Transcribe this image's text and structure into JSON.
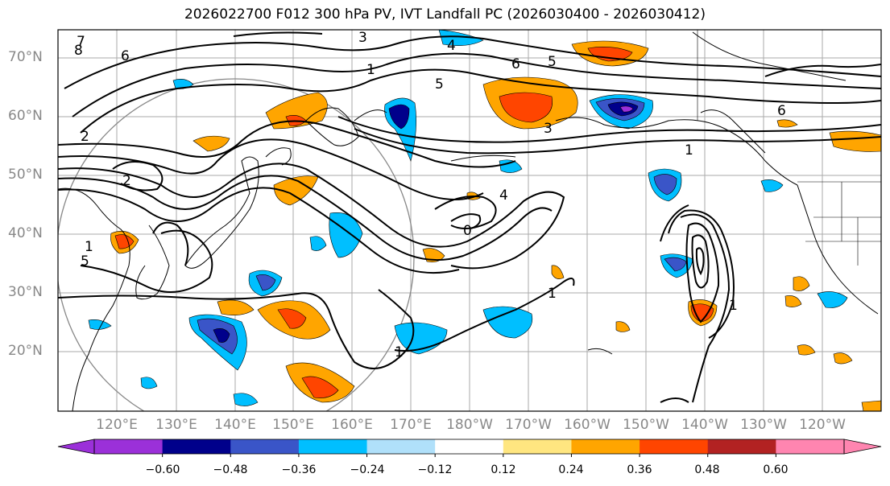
{
  "title": "2026022700 F012 300 hPa PV, IVT Landfall PC (2026030400 - 2026030412)",
  "lat_labels": [
    "70°N",
    "60°N",
    "50°N",
    "40°N",
    "30°N",
    "20°N"
  ],
  "lon_labels": [
    "120°E",
    "130°E",
    "140°E",
    "150°E",
    "160°E",
    "170°E",
    "180°W",
    "170°W",
    "160°W",
    "150°W",
    "140°W",
    "130°W",
    "120°W"
  ],
  "colorbar": {
    "ticks": [
      "−0.60",
      "−0.48",
      "−0.36",
      "−0.24",
      "−0.12",
      "0.12",
      "0.24",
      "0.36",
      "0.48",
      "0.60"
    ],
    "colors": [
      "#9b30d9",
      "#00008b",
      "#3a55c8",
      "#00bfff",
      "#b0e0fa",
      "#ffffff",
      "#ffe680",
      "#ffa500",
      "#ff4500",
      "#b22222",
      "#ff85b0"
    ]
  },
  "contour_labels": [
    "3",
    "4",
    "1",
    "6",
    "5",
    "7",
    "8",
    "2",
    "1",
    "5",
    "6",
    "3",
    "6",
    "1",
    "5",
    "4",
    "1",
    "2",
    "0",
    "1",
    "1"
  ]
}
